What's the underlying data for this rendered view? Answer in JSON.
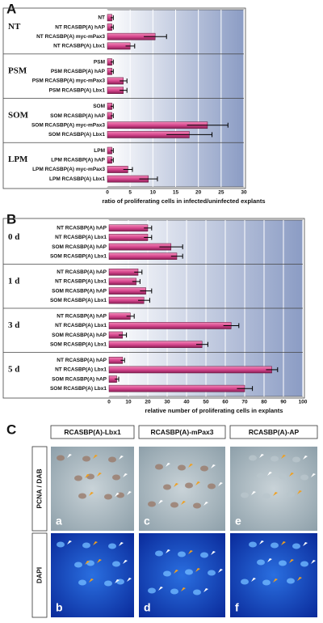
{
  "chart_data": [
    {
      "type": "bar",
      "panel": "A",
      "xlabel": "ratio of proliferating cells in infected/uninfected explants",
      "xlim": [
        0,
        30
      ],
      "xticks": [
        0,
        5,
        10,
        15,
        20,
        25,
        30
      ],
      "color": "#d8488f",
      "groups": [
        {
          "name": "NT",
          "categories": [
            "NT",
            "NT RCASBP(A) hAP",
            "NT RCASBP(A) myc-mPax3",
            "NT RCASBP(A) Lbx1"
          ],
          "values": [
            1,
            1,
            10.5,
            5
          ],
          "errors": [
            0.3,
            0.3,
            2.5,
            1
          ]
        },
        {
          "name": "PSM",
          "categories": [
            "PSM",
            "PSM RCASBP(A) hAP",
            "PSM RCASBP(A) myc-mPax3",
            "PSM RCASBP(A) Lbx1"
          ],
          "values": [
            1,
            1,
            3.5,
            3.5
          ],
          "errors": [
            0.3,
            0.3,
            0.8,
            0.8
          ]
        },
        {
          "name": "SOM",
          "categories": [
            "SOM",
            "SOM RCASBP(A) hAP",
            "SOM RCASBP(A) myc-mPax3",
            "SOM RCASBP(A) Lbx1"
          ],
          "values": [
            1,
            1,
            22,
            18
          ],
          "errors": [
            0.3,
            0.3,
            4.5,
            5
          ]
        },
        {
          "name": "LPM",
          "categories": [
            "LPM",
            "LPM RCASBP(A) hAP",
            "LPM RCASBP(A) myc-mPax3",
            "LPM RCASBP(A) Lbx1"
          ],
          "values": [
            1,
            1,
            4.5,
            9
          ],
          "errors": [
            0.3,
            0.3,
            1,
            2
          ]
        }
      ]
    },
    {
      "type": "bar",
      "panel": "B",
      "xlabel": "relative number of proliferating cells in explants",
      "xlim": [
        0,
        100
      ],
      "xticks": [
        0,
        10,
        20,
        30,
        40,
        50,
        60,
        70,
        80,
        90,
        100
      ],
      "color": "#d8488f",
      "groups": [
        {
          "name": "0 d",
          "categories": [
            "NT RCASBP(A) hAP",
            "NT RCASBP(A) Lbx1",
            "SOM RCASBP(A) hAP",
            "SOM RCASBP(A) Lbx1"
          ],
          "values": [
            20,
            20,
            32,
            35
          ],
          "errors": [
            2,
            2,
            6,
            3
          ]
        },
        {
          "name": "1 d",
          "categories": [
            "NT RCASBP(A) hAP",
            "NT RCASBP(A) Lbx1",
            "SOM RCASBP(A) hAP",
            "SOM RCASBP(A) Lbx1"
          ],
          "values": [
            15,
            14,
            19,
            18
          ],
          "errors": [
            2,
            2,
            3,
            3
          ]
        },
        {
          "name": "3 d",
          "categories": [
            "NT RCASBP(A) hAP",
            "NT RCASBP(A) Lbx1",
            "SOM RCASBP(A) hAP",
            "SOM RCASBP(A) Lbx1"
          ],
          "values": [
            11,
            63,
            7,
            48
          ],
          "errors": [
            2,
            4,
            2,
            3
          ]
        },
        {
          "name": "5 d",
          "categories": [
            "NT RCASBP(A) hAP",
            "NT RCASBP(A) Lbx1",
            "SOM RCASBP(A) hAP",
            "SOM RCASBP(A) Lbx1"
          ],
          "values": [
            7,
            84,
            4,
            70
          ],
          "errors": [
            1,
            3,
            1,
            4
          ]
        }
      ]
    }
  ],
  "panel_c": {
    "panel": "C",
    "columns": [
      "RCASBP(A)-Lbx1",
      "RCASBP(A)-mPax3",
      "RCASBP(A)-AP"
    ],
    "rows": [
      "PCNA / DAB",
      "DAPI"
    ],
    "image_labels": [
      [
        "a",
        "c",
        "e"
      ],
      [
        "b",
        "d",
        "f"
      ]
    ]
  }
}
